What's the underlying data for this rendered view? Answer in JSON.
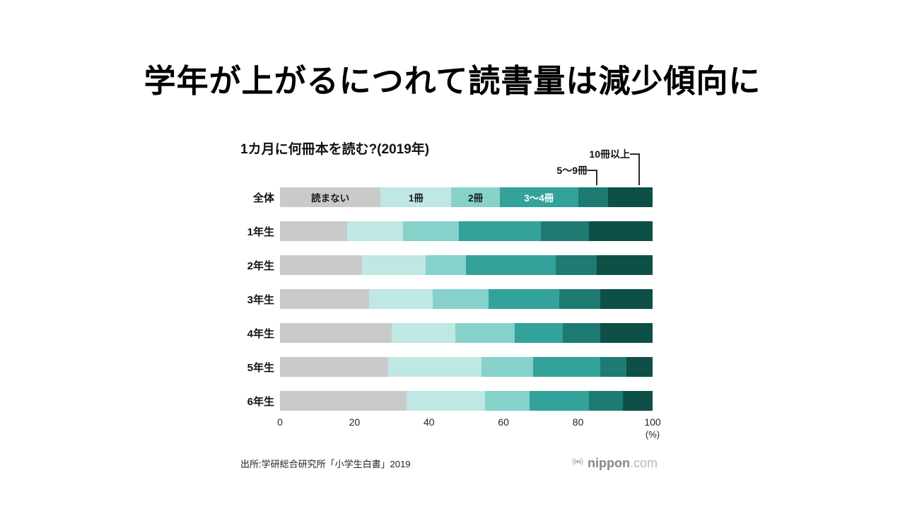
{
  "page_title": "学年が上がるにつれて読書量は減少傾向に",
  "chart_data": {
    "type": "bar",
    "stacked": true,
    "orientation": "horizontal",
    "title": "1カ月に何冊本を読む?(2019年)",
    "categories": [
      "全体",
      "1年生",
      "2年生",
      "3年生",
      "4年生",
      "5年生",
      "6年生"
    ],
    "series": [
      {
        "name": "読まない",
        "color": "#c9cbca",
        "label_inside": true,
        "label_color": "#1a1a1a",
        "values": [
          27,
          18,
          22,
          24,
          30,
          29,
          34
        ]
      },
      {
        "name": "1冊",
        "color": "#bfe7e3",
        "label_inside": true,
        "label_color": "#1a1a1a",
        "values": [
          19,
          15,
          17,
          17,
          17,
          25,
          21
        ]
      },
      {
        "name": "2冊",
        "color": "#86d2cb",
        "label_inside": true,
        "label_color": "#1a1a1a",
        "values": [
          13,
          15,
          11,
          15,
          16,
          14,
          12
        ]
      },
      {
        "name": "3〜4冊",
        "color": "#33a29a",
        "label_inside": true,
        "label_color": "#ffffff",
        "values": [
          21,
          22,
          24,
          19,
          13,
          18,
          16
        ]
      },
      {
        "name": "5〜9冊",
        "color": "#1d7b72",
        "label_inside": false,
        "label_color": "#ffffff",
        "values": [
          8,
          13,
          11,
          11,
          10,
          7,
          9
        ]
      },
      {
        "name": "10冊以上",
        "color": "#0e4f48",
        "label_inside": false,
        "label_color": "#ffffff",
        "values": [
          12,
          17,
          15,
          14,
          14,
          7,
          8
        ]
      }
    ],
    "x_ticks": [
      0,
      20,
      40,
      60,
      80,
      100
    ],
    "x_unit": "(%)",
    "xlim": [
      0,
      100
    ],
    "legend_position": "inside-first-bar-and-callouts",
    "grid": false
  },
  "source": "出所:学研総合研究所「小学生白書」2019",
  "logo": {
    "name": "nippon.com",
    "text_bold": "nippon",
    "text_light": ".com",
    "icon": "broadcast-icon",
    "color": "#9aa0a6"
  }
}
